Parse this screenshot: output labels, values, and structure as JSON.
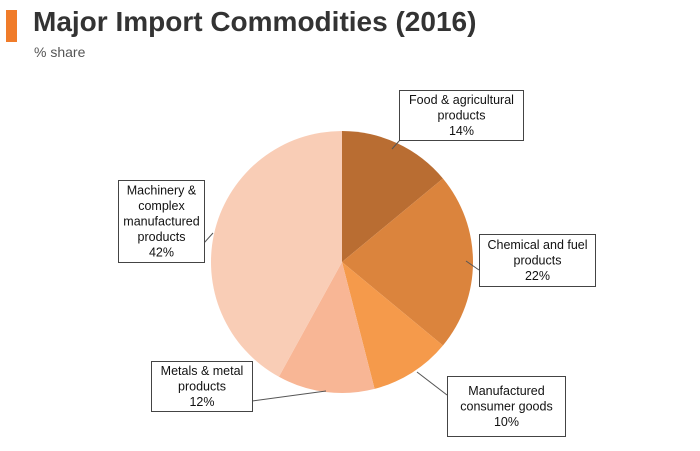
{
  "header": {
    "title": "Major Import Commodities (2016)",
    "subtitle": "% share"
  },
  "colors": {
    "accent": "#F07C2A",
    "slices": [
      "#B96D32",
      "#DB843D",
      "#F59A4B",
      "#F8B695",
      "#F9CDB6"
    ]
  },
  "chart_data": {
    "type": "pie",
    "title": "Major Import Commodities (2016)",
    "subtitle": "% share",
    "unit": "%",
    "slices": [
      {
        "label_lines": [
          "Food & agricultural",
          "products"
        ],
        "value": 14,
        "value_label": "14%"
      },
      {
        "label_lines": [
          "Chemical and fuel",
          "products"
        ],
        "value": 22,
        "value_label": "22%"
      },
      {
        "label_lines": [
          "Manufactured",
          "consumer goods"
        ],
        "value": 10,
        "value_label": "10%"
      },
      {
        "label_lines": [
          "Metals & metal",
          "products"
        ],
        "value": 12,
        "value_label": "12%"
      },
      {
        "label_lines": [
          "Machinery &",
          "complex",
          "manufactured",
          "products"
        ],
        "value": 42,
        "value_label": "42%"
      }
    ]
  }
}
